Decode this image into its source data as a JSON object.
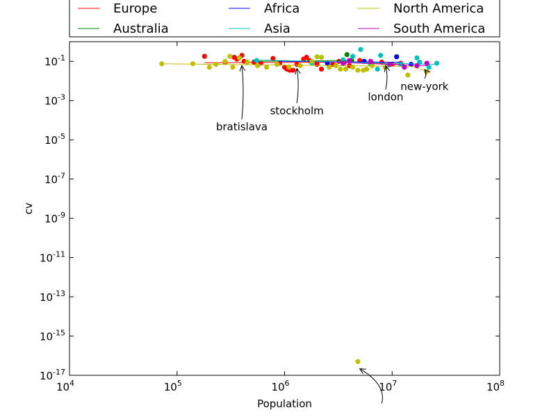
{
  "chart_data": {
    "type": "scatter",
    "title": "",
    "xlabel": "Population",
    "ylabel": "cv",
    "xscale": "log",
    "yscale": "log",
    "xlim": [
      10000,
      100000000
    ],
    "ylim": [
      1e-17,
      1
    ],
    "grid": false,
    "legend_placement": "top",
    "x_ticks": [
      {
        "value": 10000,
        "base": "10",
        "exp": "4"
      },
      {
        "value": 100000,
        "base": "10",
        "exp": "5"
      },
      {
        "value": 1000000,
        "base": "10",
        "exp": "6"
      },
      {
        "value": 10000000,
        "base": "10",
        "exp": "7"
      },
      {
        "value": 100000000,
        "base": "10",
        "exp": "8"
      }
    ],
    "y_ticks": [
      {
        "value": 1e-17,
        "base": "10",
        "exp": "-17"
      },
      {
        "value": 1e-15,
        "base": "10",
        "exp": "-15"
      },
      {
        "value": 1e-13,
        "base": "10",
        "exp": "-13"
      },
      {
        "value": 1e-11,
        "base": "10",
        "exp": "-11"
      },
      {
        "value": 1e-09,
        "base": "10",
        "exp": "-9"
      },
      {
        "value": 1e-07,
        "base": "10",
        "exp": "-7"
      },
      {
        "value": 1e-05,
        "base": "10",
        "exp": "-5"
      },
      {
        "value": 0.001,
        "base": "10",
        "exp": "-3"
      },
      {
        "value": 0.1,
        "base": "10",
        "exp": "-1"
      }
    ],
    "series": [
      {
        "name": "Europe",
        "color": "#ff0000",
        "line": [
          [
            180000,
            0.085
          ],
          [
            4000000,
            0.09
          ],
          [
            13000000,
            0.07
          ]
        ],
        "points": [
          [
            180000,
            0.18
          ],
          [
            280000,
            0.09
          ],
          [
            340000,
            0.16
          ],
          [
            360000,
            0.13
          ],
          [
            400000,
            0.2
          ],
          [
            420000,
            0.1
          ],
          [
            520000,
            0.09
          ],
          [
            600000,
            0.08
          ],
          [
            780000,
            0.14
          ],
          [
            900000,
            0.08
          ],
          [
            1000000,
            0.05
          ],
          [
            1050000,
            0.04
          ],
          [
            1120000,
            0.035
          ],
          [
            1200000,
            0.035
          ],
          [
            1300000,
            0.07
          ],
          [
            1500000,
            0.13
          ],
          [
            1600000,
            0.16
          ],
          [
            1700000,
            0.11
          ],
          [
            2000000,
            0.07
          ],
          [
            2200000,
            0.04
          ],
          [
            2800000,
            0.07
          ],
          [
            3200000,
            0.1
          ],
          [
            3600000,
            0.09
          ],
          [
            4000000,
            0.06
          ],
          [
            5000000,
            0.11
          ],
          [
            6500000,
            0.08
          ],
          [
            8000000,
            0.09
          ],
          [
            10000000,
            0.07
          ],
          [
            12000000,
            0.08
          ]
        ]
      },
      {
        "name": "Australia",
        "color": "#008000",
        "line": [
          [
            500000,
            0.1
          ],
          [
            4000000,
            0.11
          ]
        ],
        "points": [
          [
            3800000,
            0.22
          ],
          [
            4200000,
            0.11
          ]
        ]
      },
      {
        "name": "Africa",
        "color": "#0000ff",
        "line": [
          [
            900000,
            0.1
          ],
          [
            12000000,
            0.09
          ]
        ],
        "points": [
          [
            2500000,
            0.08
          ],
          [
            5500000,
            0.1
          ],
          [
            11000000,
            0.17
          ],
          [
            15000000,
            0.07
          ]
        ]
      },
      {
        "name": "Asia",
        "color": "#00bfbf",
        "line": [
          [
            500000,
            0.12
          ],
          [
            26000000,
            0.07
          ]
        ],
        "points": [
          [
            550000,
            0.11
          ],
          [
            1800000,
            0.08
          ],
          [
            3500000,
            0.12
          ],
          [
            4300000,
            0.18
          ],
          [
            5100000,
            0.4
          ],
          [
            6300000,
            0.07
          ],
          [
            7300000,
            0.04
          ],
          [
            7800000,
            0.2
          ],
          [
            9000000,
            0.06
          ],
          [
            12000000,
            0.07
          ],
          [
            17000000,
            0.15
          ],
          [
            18000000,
            0.09
          ],
          [
            22000000,
            0.05
          ],
          [
            26000000,
            0.08
          ]
        ]
      },
      {
        "name": "North America",
        "color": "#bfbf00",
        "line": [
          [
            72000,
            0.075
          ],
          [
            15000000,
            0.055
          ],
          [
            22000000,
            0.03
          ]
        ],
        "points": [
          [
            72000,
            0.075
          ],
          [
            140000,
            0.075
          ],
          [
            200000,
            0.05
          ],
          [
            230000,
            0.07
          ],
          [
            280000,
            0.1
          ],
          [
            310000,
            0.18
          ],
          [
            330000,
            0.05
          ],
          [
            380000,
            0.15
          ],
          [
            450000,
            0.09
          ],
          [
            560000,
            0.06
          ],
          [
            680000,
            0.05
          ],
          [
            850000,
            0.07
          ],
          [
            1100000,
            0.05
          ],
          [
            1400000,
            0.06
          ],
          [
            1800000,
            0.1
          ],
          [
            2000000,
            0.17
          ],
          [
            2200000,
            0.16
          ],
          [
            2600000,
            0.05
          ],
          [
            3000000,
            0.06
          ],
          [
            3300000,
            0.04
          ],
          [
            3700000,
            0.04
          ],
          [
            4300000,
            0.05
          ],
          [
            4800000,
            0.035
          ],
          [
            5400000,
            0.035
          ],
          [
            5800000,
            0.04
          ],
          [
            6500000,
            0.06
          ],
          [
            8600000,
            0.05
          ],
          [
            14000000,
            0.02
          ],
          [
            21000000,
            0.03
          ],
          [
            4800000,
            5e-17
          ]
        ]
      },
      {
        "name": "South America",
        "color": "#bf00bf",
        "line": [
          [
            2800000,
            0.09
          ],
          [
            21000000,
            0.06
          ]
        ],
        "points": [
          [
            3500000,
            0.08
          ],
          [
            4000000,
            0.11
          ],
          [
            6300000,
            0.1
          ],
          [
            9500000,
            0.07
          ],
          [
            13000000,
            0.05
          ],
          [
            17000000,
            0.06
          ],
          [
            21000000,
            0.08
          ]
        ]
      }
    ],
    "annotations": [
      {
        "text": "bratislava",
        "point": [
          400000,
          0.085
        ],
        "text_pos": [
          400000,
          3e-05
        ]
      },
      {
        "text": "stockholm",
        "point": [
          1300000,
          0.06
        ],
        "text_pos": [
          1300000,
          0.0002
        ]
      },
      {
        "text": "london",
        "point": [
          8700000,
          0.08
        ],
        "text_pos": [
          8700000,
          0.001
        ]
      },
      {
        "text": "new-york",
        "point": [
          20000000,
          0.052
        ],
        "text_pos": [
          20000000,
          0.0035
        ]
      },
      {
        "text": "",
        "point": [
          5000000,
          3e-17
        ],
        "text_pos": [
          8000000,
          1e-19
        ]
      }
    ]
  }
}
